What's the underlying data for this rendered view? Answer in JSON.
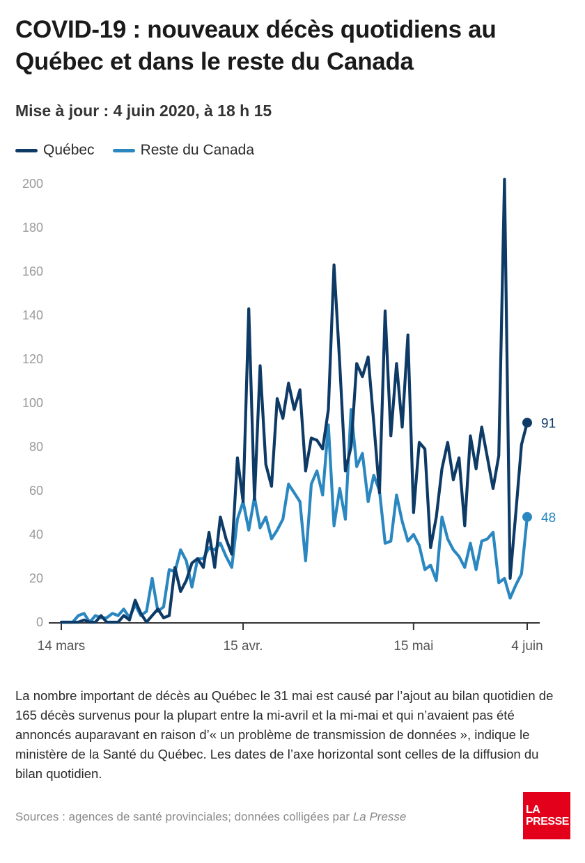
{
  "title": "COVID-19 : nouveaux décès quotidiens au Québec et dans le reste du Canada",
  "subtitle": "Mise à jour : 4 juin 2020, à 18 h 15",
  "colors": {
    "quebec": "#0e3a66",
    "canada": "#2a87c0",
    "axis": "#333333",
    "grid_text": "#9a9a9a"
  },
  "chart_data": {
    "type": "line",
    "x_start": "2020-03-14",
    "x_end": "2020-06-04",
    "x_ticks": [
      {
        "date": "2020-03-14",
        "label": "14 mars"
      },
      {
        "date": "2020-04-15",
        "label": "15 avr."
      },
      {
        "date": "2020-05-15",
        "label": "15 mai"
      },
      {
        "date": "2020-06-04",
        "label": "4 juin"
      }
    ],
    "ylim": [
      0,
      200
    ],
    "y_ticks": [
      0,
      20,
      40,
      60,
      80,
      100,
      120,
      140,
      160,
      180,
      200
    ],
    "series": [
      {
        "name": "Québec",
        "color": "#0e3a66",
        "end_label": "91",
        "values": [
          0,
          0,
          0,
          0,
          1,
          0,
          0,
          3,
          0,
          0,
          0,
          3,
          1,
          10,
          4,
          0,
          3,
          6,
          2,
          3,
          25,
          14,
          19,
          27,
          29,
          25,
          41,
          25,
          48,
          38,
          31,
          75,
          55,
          143,
          56,
          117,
          72,
          62,
          102,
          93,
          109,
          97,
          106,
          69,
          84,
          83,
          79,
          97,
          163,
          118,
          69,
          80,
          118,
          112,
          121,
          91,
          59,
          142,
          85,
          118,
          89,
          131,
          50,
          82,
          79,
          34,
          48,
          70,
          82,
          65,
          75,
          44,
          85,
          70,
          89,
          75,
          61,
          76,
          202,
          20,
          50,
          81,
          91
        ]
      },
      {
        "name": "Reste du Canada",
        "color": "#2a87c0",
        "end_label": "48",
        "values": [
          0,
          0,
          0,
          3,
          4,
          0,
          3,
          2,
          2,
          4,
          3,
          6,
          2,
          8,
          3,
          5,
          20,
          5,
          7,
          24,
          23,
          33,
          28,
          16,
          29,
          29,
          34,
          33,
          36,
          30,
          25,
          47,
          55,
          42,
          57,
          43,
          48,
          38,
          42,
          47,
          63,
          59,
          55,
          28,
          63,
          69,
          58,
          90,
          44,
          61,
          47,
          97,
          71,
          77,
          55,
          67,
          60,
          36,
          37,
          58,
          46,
          37,
          40,
          35,
          24,
          26,
          19,
          48,
          38,
          33,
          30,
          25,
          36,
          24,
          37,
          38,
          41,
          18,
          20,
          11,
          17,
          22,
          48
        ]
      }
    ]
  },
  "note": "La nombre important de décès au Québec le 31 mai est causé par l’ajout au bilan quotidien de 165 décès survenus pour la plupart entre la mi-avril et la mi-mai et qui n’avaient pas été annoncés auparavant en raison d’« un problème de transmission de données », indique le ministère de la Santé du Québec. Les dates de l’axe horizontal sont celles de la diffusion du bilan quotidien.",
  "source": {
    "prefix": "Sources : agences de santé provinciales; données colligées par ",
    "publisher": "La Presse"
  },
  "logo": {
    "line1": "LA",
    "line2": "PRESSE"
  }
}
